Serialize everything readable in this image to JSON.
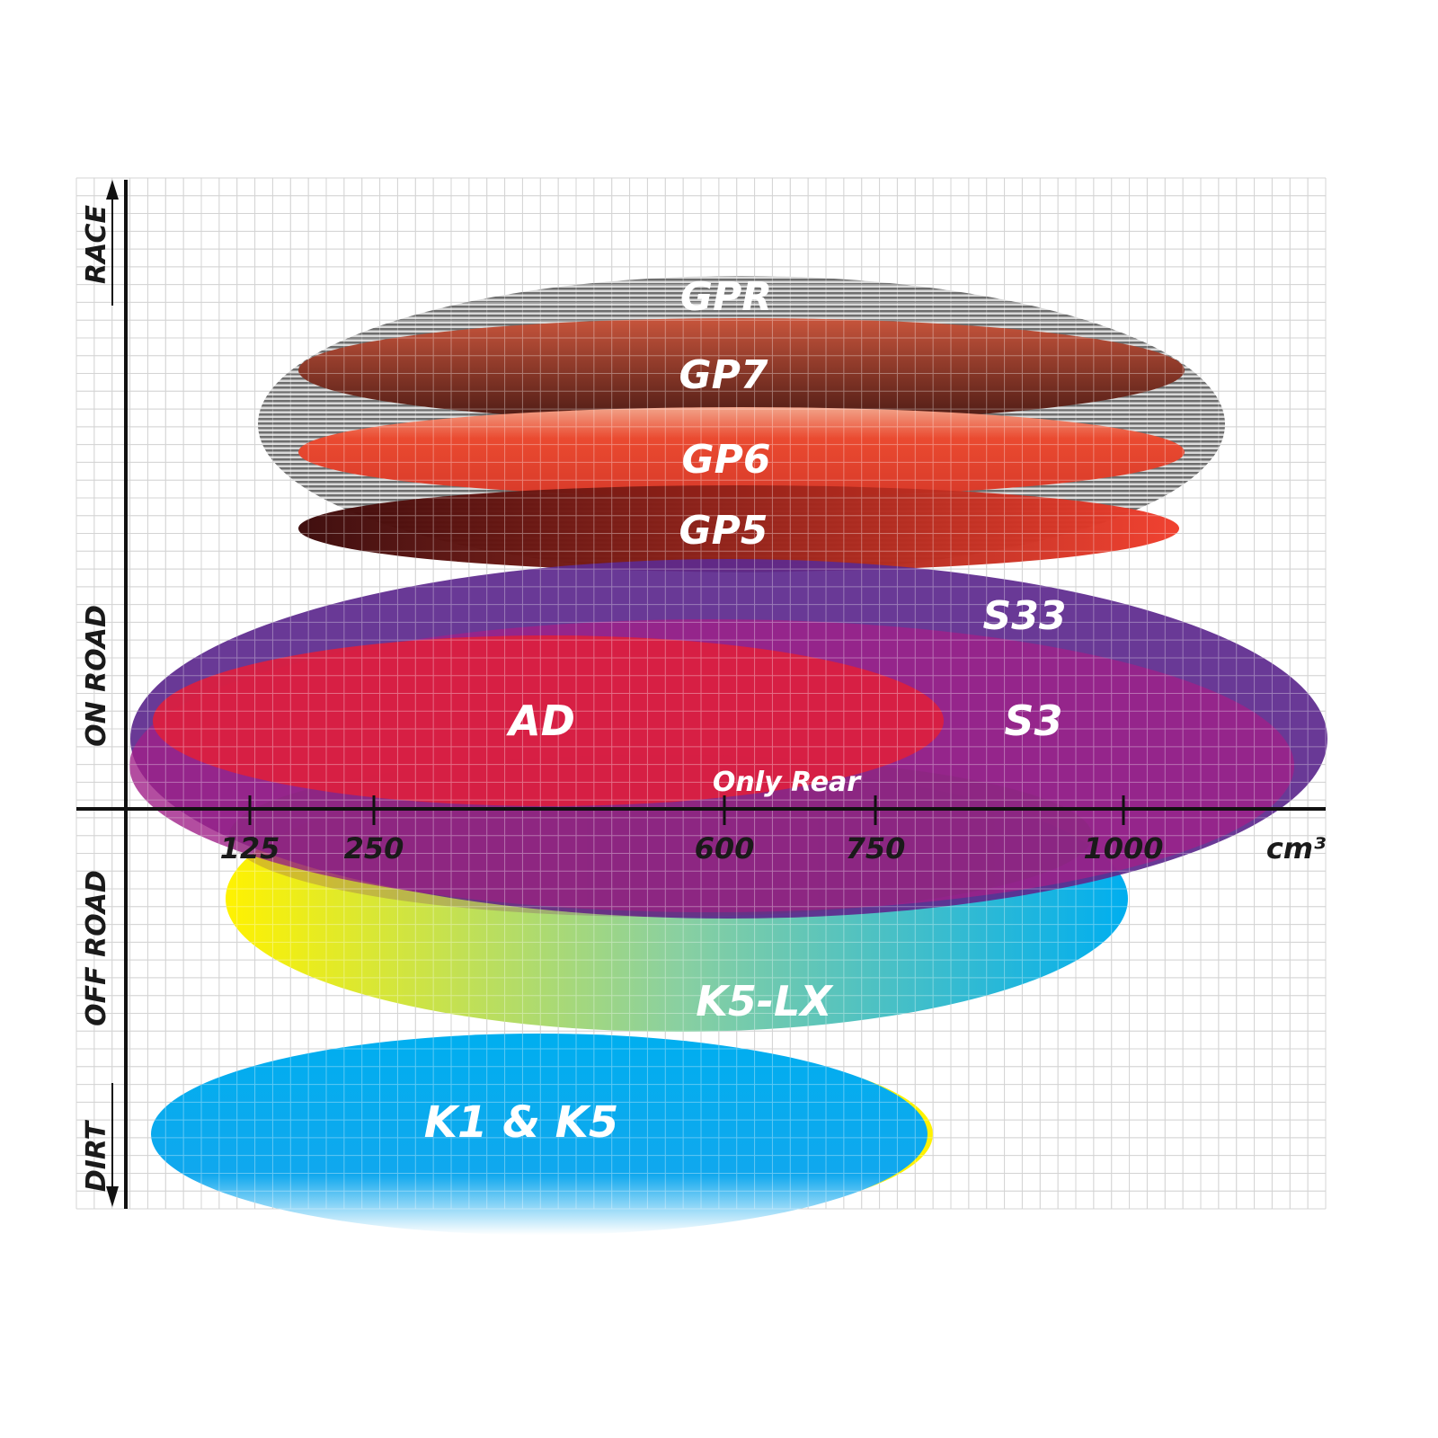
{
  "chart_data": {
    "type": "ellipse-positioning",
    "x_axis": {
      "unit": "cm³",
      "ticks": [
        "125",
        "250",
        "600",
        "750",
        "1000"
      ]
    },
    "y_axis": {
      "labels": [
        "RACE",
        "ON ROAD",
        "OFF ROAD",
        "DIRT"
      ]
    },
    "grid": true,
    "products": [
      {
        "id": "gpr",
        "label": "GPR",
        "color": "#8a8a8a"
      },
      {
        "id": "gp7",
        "label": "GP7",
        "color": "#8b3a2a"
      },
      {
        "id": "gp6",
        "label": "GP6",
        "color": "#e8452e"
      },
      {
        "id": "gp5",
        "label": "GP5",
        "color": "#b01e1e"
      },
      {
        "id": "s33",
        "label": "S33",
        "color": "#5e2a8e"
      },
      {
        "id": "s3",
        "label": "S3",
        "color": "#9c2088"
      },
      {
        "id": "ad",
        "label": "AD",
        "color": "#da1f40"
      },
      {
        "id": "onlyrear",
        "label": "Only Rear",
        "color": "#7a2a6a"
      },
      {
        "id": "k5lx",
        "label": "K5-LX",
        "color": "#19b7e0"
      },
      {
        "id": "k1k5",
        "label": "K1 & K5",
        "color": "#00aeef"
      }
    ]
  }
}
